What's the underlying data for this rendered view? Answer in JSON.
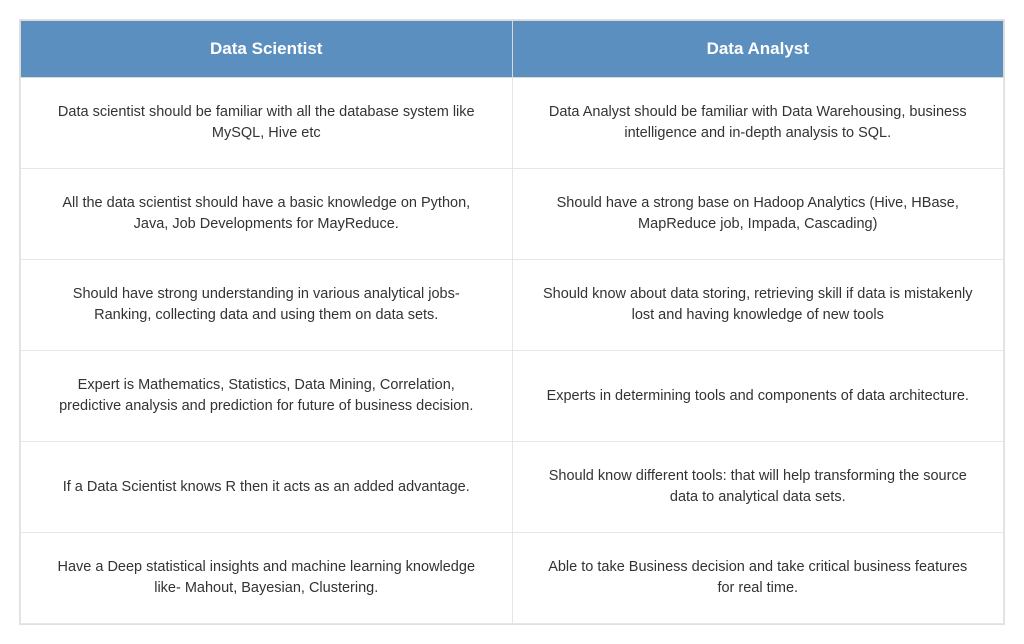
{
  "comparison_table": {
    "type": "table",
    "columns": [
      {
        "label": "Data Scientist"
      },
      {
        "label": "Data Analyst"
      }
    ],
    "rows": [
      [
        "Data scientist should be familiar with all the database system like MySQL, Hive etc",
        "Data Analyst should be familiar with Data Warehousing, business intelligence and in-depth analysis to SQL."
      ],
      [
        "All the data scientist should have a basic knowledge on Python, Java, Job Developments for MayReduce.",
        "Should have a strong base on Hadoop Analytics (Hive, HBase, MapReduce job, Impada, Cascading)"
      ],
      [
        "Should have strong understanding in various analytical jobs- Ranking, collecting data and using them on data sets.",
        "Should know about data storing, retrieving skill if data is mistakenly lost and having knowledge of new tools"
      ],
      [
        "Expert is Mathematics, Statistics, Data Mining, Correlation, predictive analysis and prediction for future of business decision.",
        "Experts in determining tools and components of data architecture."
      ],
      [
        "If a Data Scientist knows R then it acts as an added advantage.",
        "Should know different tools: that will help transforming the source data to analytical data sets."
      ],
      [
        "Have a Deep statistical insights and machine learning knowledge like- Mahout, Bayesian, Clustering.",
        "Able to take Business decision and take critical business features for real time."
      ]
    ],
    "header_bg": "#5b8fbf",
    "header_fg": "#ffffff",
    "cell_bg": "#ffffff",
    "cell_fg": "#333333",
    "border_color": "#e6e6e6",
    "header_fontsize": 17,
    "cell_fontsize": 14.5
  }
}
